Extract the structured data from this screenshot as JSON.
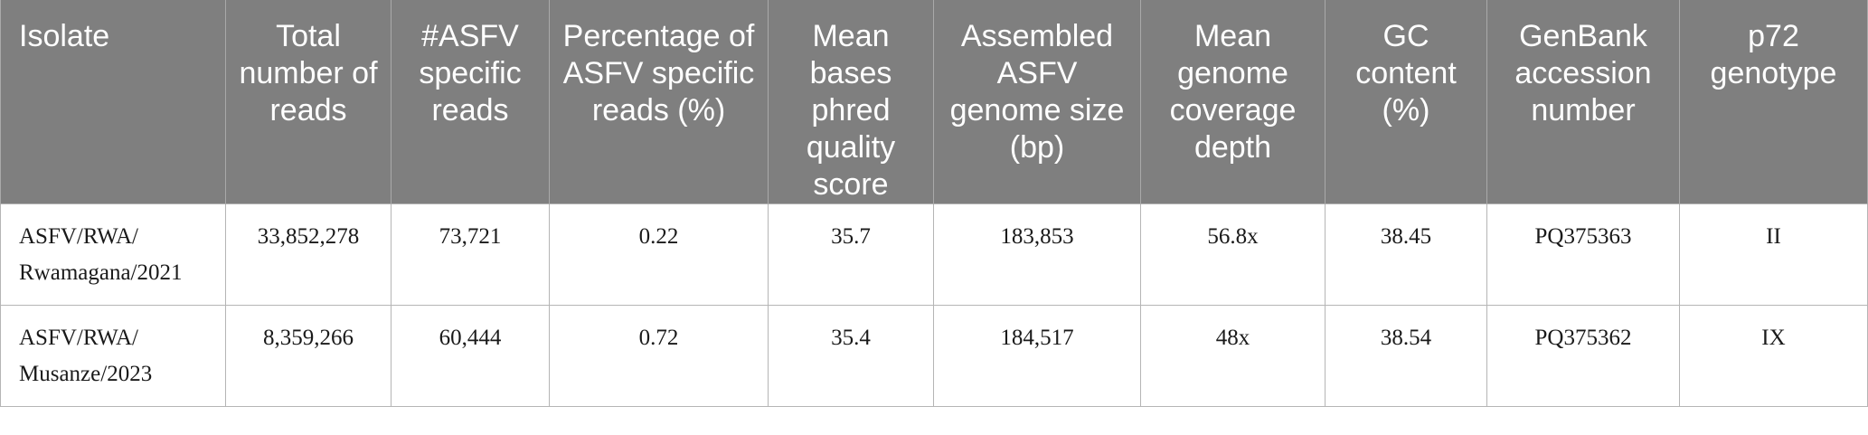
{
  "table": {
    "headers": [
      "Isolate",
      "Total number of reads",
      "#ASFV specific reads",
      "Percentage of ASFV specific reads (%)",
      "Mean bases phred quality score",
      "Assembled ASFV genome size (bp)",
      "Mean genome coverage depth",
      "GC content (%)",
      "GenBank accession number",
      "p72 genotype"
    ],
    "rows": [
      {
        "isolate_line1": "ASFV/RWA/",
        "isolate_line2": "Rwamagana/2021",
        "total_reads": "33,852,278",
        "asfv_reads": "73,721",
        "percentage": "0.22",
        "phred_score": "35.7",
        "genome_size": "183,853",
        "coverage_depth": "56.8x",
        "gc_content": "38.45",
        "accession": "PQ375363",
        "genotype": "II"
      },
      {
        "isolate_line1": "ASFV/RWA/",
        "isolate_line2": "Musanze/2023",
        "total_reads": "8,359,266",
        "asfv_reads": "60,444",
        "percentage": "0.72",
        "phred_score": "35.4",
        "genome_size": "184,517",
        "coverage_depth": "48x",
        "gc_content": "38.54",
        "accession": "PQ375362",
        "genotype": "IX"
      }
    ]
  }
}
